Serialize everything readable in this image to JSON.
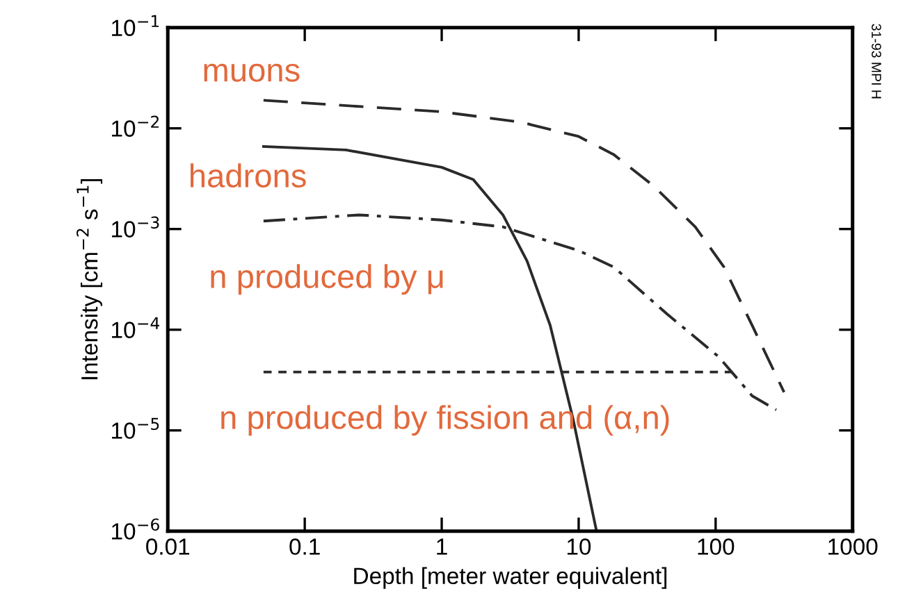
{
  "chart_data": {
    "type": "line",
    "xlabel": "Depth [meter water equivalent]",
    "ylabel": "Intensity [cm$^{−2}$ s$^{−1}$]",
    "log": "xy",
    "xlim": [
      0.01,
      1000
    ],
    "ylim": [
      1e-06,
      0.1
    ],
    "xticks": [
      0.01,
      0.1,
      1,
      10,
      100,
      1000
    ],
    "yticks": [
      {
        "value": 1e-06,
        "label": "10$^{−6}$"
      },
      {
        "value": 1e-05,
        "label": "10$^{−5}$"
      },
      {
        "value": 0.0001,
        "label": "10$^{−4}$"
      },
      {
        "value": 0.001,
        "label": "10$^{−3}$"
      },
      {
        "value": 0.01,
        "label": "10$^{−2}$"
      },
      {
        "value": 0.1,
        "label": "10$^{−1}$"
      }
    ],
    "grid": false,
    "legend": false,
    "marker": "none",
    "series": [
      {
        "name": "muons",
        "color": "#2a2a2a",
        "line_style": "dashed",
        "x": [
          0.05,
          1,
          3.8,
          10,
          18,
          35,
          71,
          115,
          185,
          316
        ],
        "values": [
          0.019,
          0.0146,
          0.0115,
          0.0083,
          0.0055,
          0.0027,
          0.00105,
          0.00042,
          0.00011,
          2.4e-05
        ]
      },
      {
        "name": "hadrons",
        "color": "#2a2a2a",
        "line_style": "solid",
        "x": [
          0.05,
          0.2,
          1,
          1.7,
          2.8,
          4.2,
          6.2,
          9.1,
          13.5
        ],
        "values": [
          0.0066,
          0.0061,
          0.0041,
          0.0031,
          0.00138,
          0.00048,
          0.00011,
          1.3e-05,
          1e-06
        ]
      },
      {
        "name": "n produced by μ",
        "color": "#2a2a2a",
        "line_style": "dashdot",
        "x": [
          0.05,
          0.25,
          1,
          2.8,
          10,
          18,
          44,
          105,
          185,
          277
        ],
        "values": [
          0.0012,
          0.00138,
          0.00123,
          0.00105,
          0.00061,
          0.00042,
          0.000144,
          5.4e-05,
          2.2e-05,
          1.6e-05
        ]
      },
      {
        "name": "n produced by fission and (α,n)",
        "color": "#2a2a2a",
        "line_style": "dotted",
        "x": [
          0.05,
          130
        ],
        "values": [
          3.8e-05,
          3.8e-05
        ]
      }
    ],
    "annotations": [
      "31-93 MPI H"
    ]
  }
}
